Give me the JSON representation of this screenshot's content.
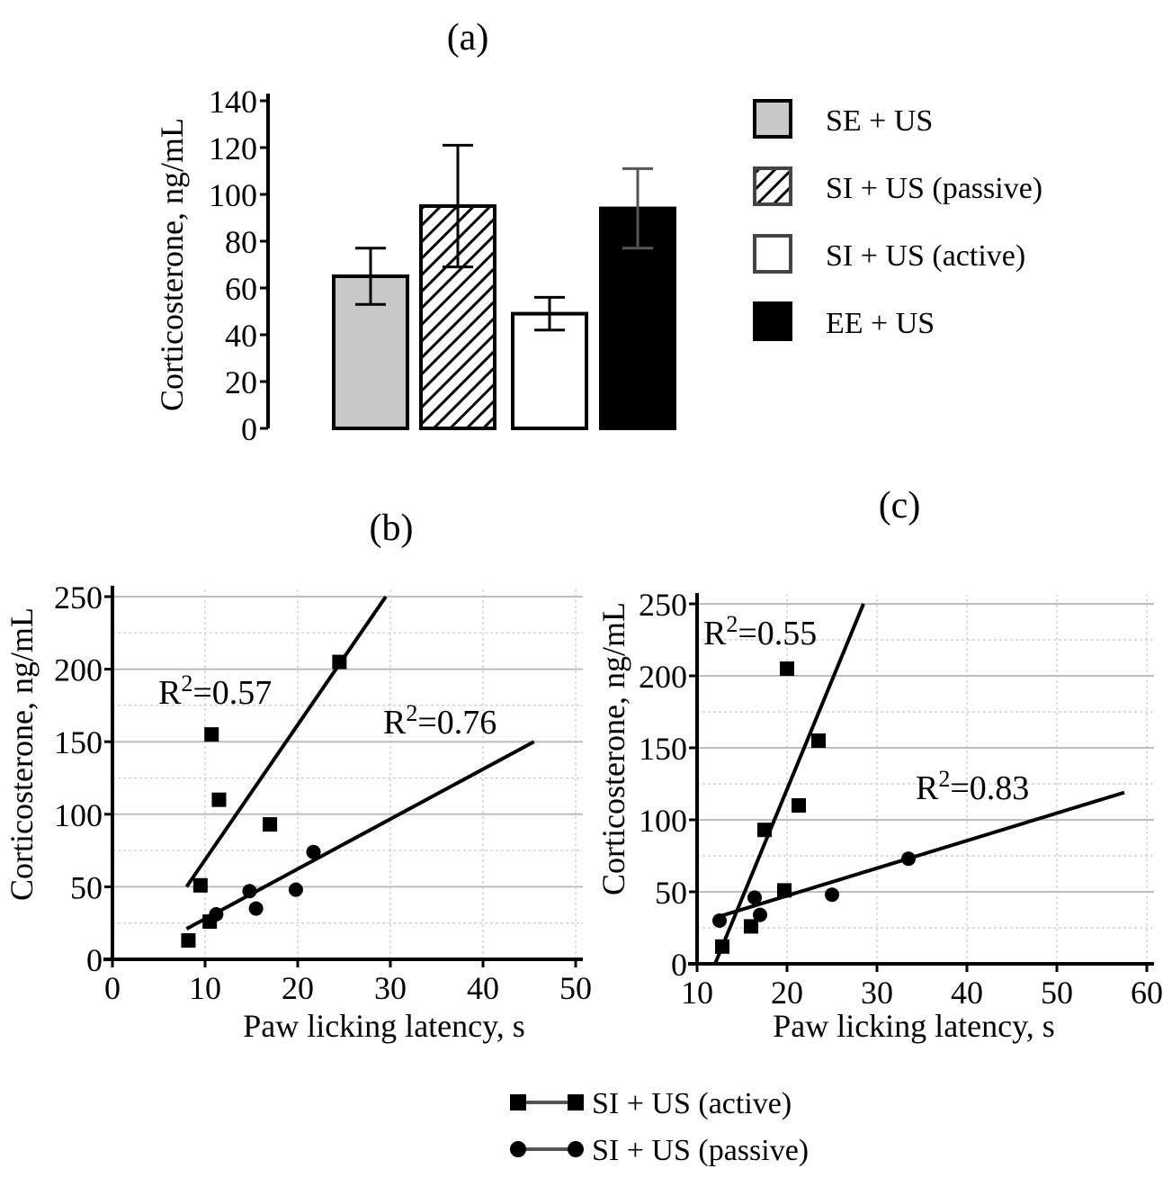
{
  "chart_data": [
    {
      "id": "a",
      "type": "bar",
      "title": "(a)",
      "xlabel": "",
      "ylabel": "Corticosterone, ng/mL",
      "ylim": [
        0,
        140
      ],
      "yticks": [
        0,
        20,
        40,
        60,
        80,
        100,
        120,
        140
      ],
      "categories": [
        "SE + US",
        "SI + US (passive)",
        "SI + US (active)",
        "EE + US"
      ],
      "values": [
        65,
        95,
        49,
        94
      ],
      "errors": [
        12,
        26,
        7,
        17
      ],
      "colors": {
        "SE + US": "#c8c8c8",
        "SI + US (passive)": "hatch",
        "SI + US (active)": "#ffffff",
        "EE + US": "#000000"
      },
      "legend": {
        "placement": "right",
        "entries": [
          {
            "label": "SE + US",
            "style": "gray"
          },
          {
            "label": "SI + US (passive)",
            "style": "hatch"
          },
          {
            "label": "SI + US (active)",
            "style": "white"
          },
          {
            "label": "EE + US",
            "style": "black"
          }
        ]
      },
      "grid": false
    },
    {
      "id": "b",
      "type": "scatter",
      "title": "(b)",
      "xlabel": "Paw licking latency, s",
      "ylabel": "Corticosterone, ng/mL",
      "xlim": [
        0,
        50
      ],
      "ylim": [
        0,
        250
      ],
      "xticks": [
        0,
        10,
        20,
        30,
        40,
        50
      ],
      "yticks": [
        0,
        50,
        100,
        150,
        200,
        250
      ],
      "grid": true,
      "series": [
        {
          "name": "SI + US (active)",
          "marker": "square",
          "points": [
            [
              8.2,
              13
            ],
            [
              9.5,
              51
            ],
            [
              10.5,
              26
            ],
            [
              10.7,
              155
            ],
            [
              11.5,
              110
            ],
            [
              17,
              93
            ],
            [
              24.5,
              205
            ]
          ],
          "trendline": [
            [
              8,
              50
            ],
            [
              29.5,
              250
            ]
          ],
          "r2_label": "R²=0.57",
          "r2_base": "R",
          "r2_sup": "2",
          "r2_value": "=0.57"
        },
        {
          "name": "SI + US (passive)",
          "marker": "circle",
          "points": [
            [
              11.2,
              31
            ],
            [
              14.8,
              47
            ],
            [
              15.5,
              35
            ],
            [
              19.8,
              48
            ],
            [
              21.7,
              74
            ]
          ],
          "trendline": [
            [
              8,
              21
            ],
            [
              45.5,
              150
            ]
          ],
          "r2_label": "R²=0.76",
          "r2_base": "R",
          "r2_sup": "2",
          "r2_value": "=0.76"
        }
      ]
    },
    {
      "id": "c",
      "type": "scatter",
      "title": "(c)",
      "xlabel": "Paw licking latency, s",
      "ylabel": "Corticosterone, ng/mL",
      "xlim": [
        10,
        60
      ],
      "ylim": [
        0,
        250
      ],
      "xticks": [
        10,
        20,
        30,
        40,
        50,
        60
      ],
      "yticks": [
        0,
        50,
        100,
        150,
        200,
        250
      ],
      "grid": true,
      "series": [
        {
          "name": "SI + US (active)",
          "marker": "square",
          "points": [
            [
              12.8,
              12
            ],
            [
              16,
              26
            ],
            [
              17.5,
              93
            ],
            [
              19.7,
              51
            ],
            [
              20,
              205
            ],
            [
              21.3,
              110
            ],
            [
              23.5,
              155
            ]
          ],
          "trendline": [
            [
              12,
              0
            ],
            [
              28.5,
              250
            ]
          ],
          "r2_label": "R²=0.55",
          "r2_base": "R",
          "r2_sup": "2",
          "r2_value": "=0.55"
        },
        {
          "name": "SI + US (passive)",
          "marker": "circle",
          "points": [
            [
              12.5,
              30
            ],
            [
              16.4,
              46
            ],
            [
              17,
              34
            ],
            [
              25,
              48
            ],
            [
              33.5,
              73
            ]
          ],
          "trendline": [
            [
              12,
              32
            ],
            [
              57.5,
              119
            ]
          ],
          "r2_label": "R²=0.83",
          "r2_base": "R",
          "r2_sup": "2",
          "r2_value": "=0.83"
        }
      ]
    }
  ],
  "shared_legend": {
    "placement": "bottom-center",
    "entries": [
      {
        "label": "SI + US (active)",
        "marker": "square"
      },
      {
        "label": "SI + US (passive)",
        "marker": "circle"
      }
    ]
  }
}
